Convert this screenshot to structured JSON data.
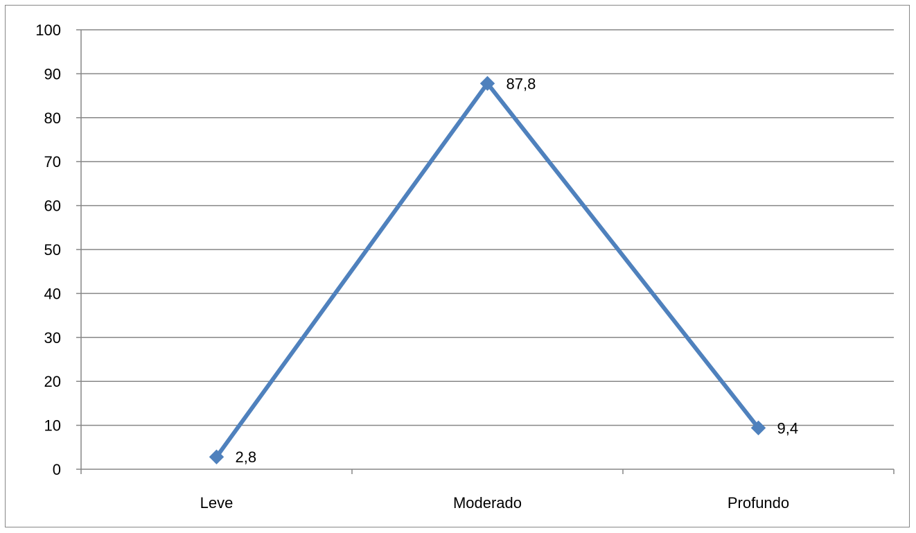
{
  "chart_data": {
    "type": "line",
    "categories": [
      "Leve",
      "Moderado",
      "Profundo"
    ],
    "series": [
      {
        "values": [
          2.8,
          87.8,
          9.4
        ],
        "data_labels": [
          "2,8",
          "87,8",
          "9,4"
        ],
        "color": "#4f81bd",
        "marker": "diamond"
      }
    ],
    "ylim": [
      0,
      100
    ],
    "yticks": [
      0,
      10,
      20,
      30,
      40,
      50,
      60,
      70,
      80,
      90,
      100
    ],
    "grid": true,
    "legend": "none",
    "colors": {
      "gridline": "#868686",
      "frame": "#868686",
      "text": "#000000"
    }
  }
}
